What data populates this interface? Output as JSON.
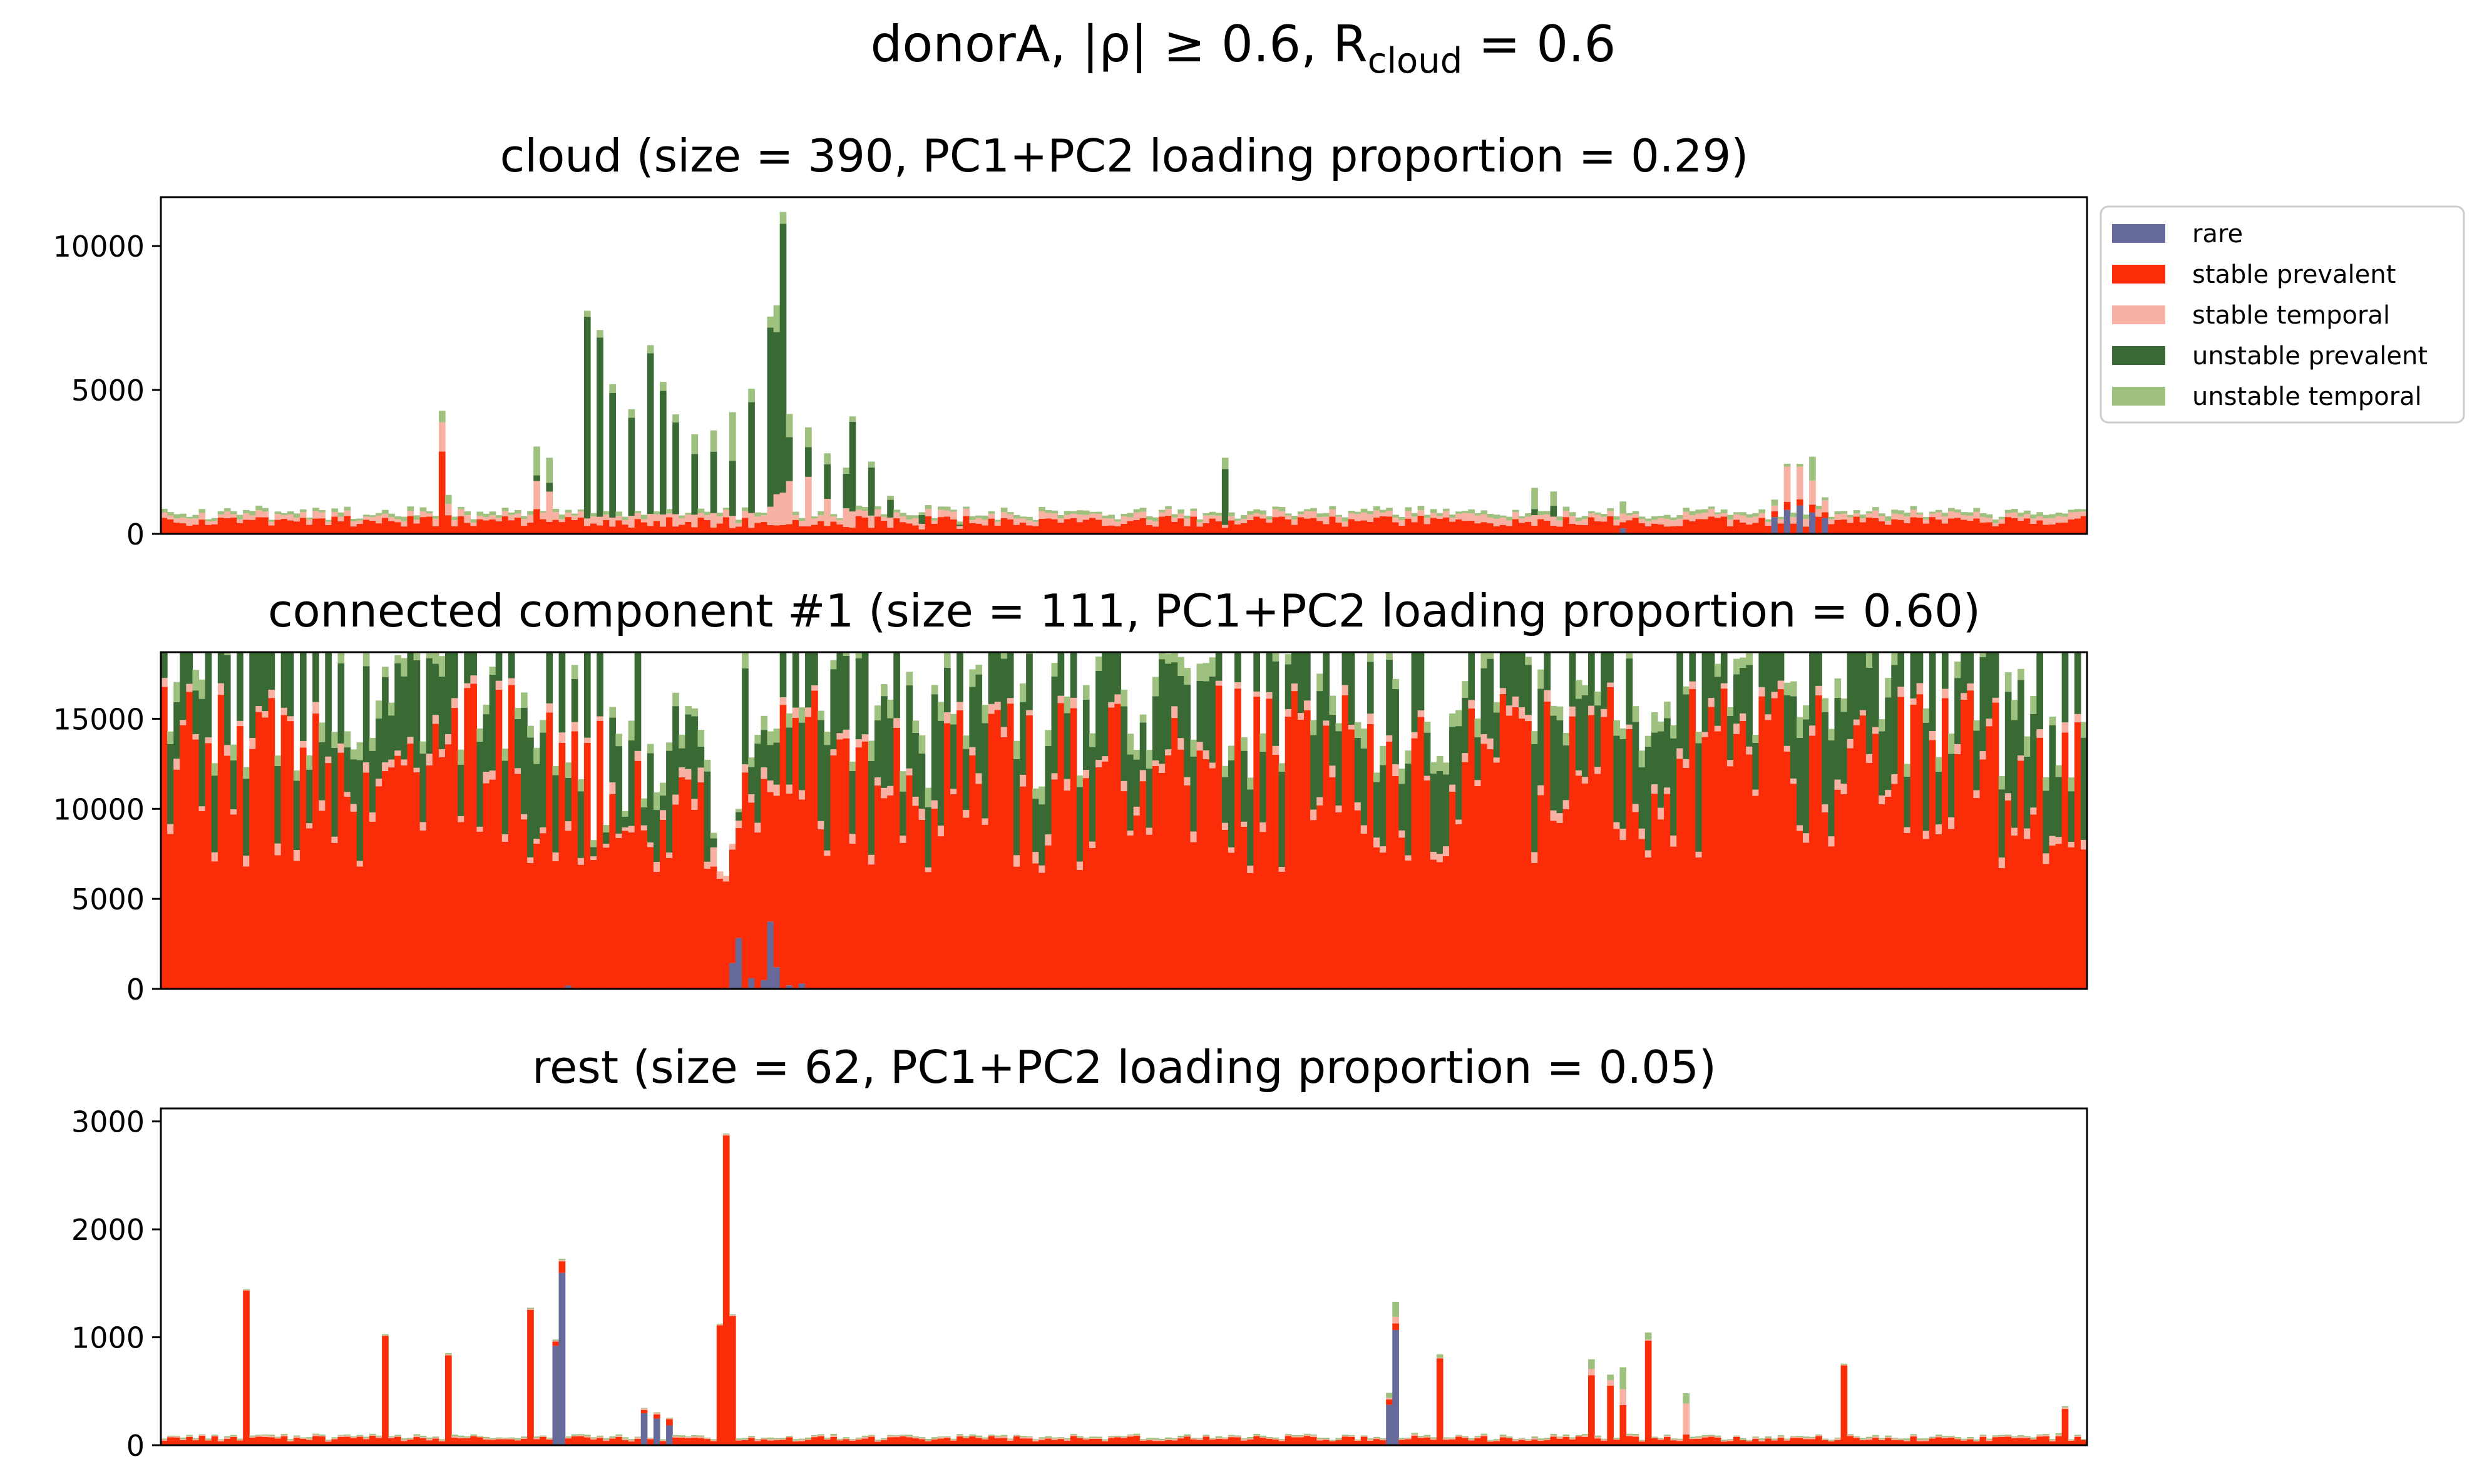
{
  "figure": {
    "suptitle_prefix": "donorA, |ρ| ≥ 0.6, R",
    "suptitle_sub": "cloud",
    "suptitle_suffix": " = 0.6"
  },
  "legend": {
    "placement": "upper-right outside first panel",
    "entries": [
      {
        "label": "rare",
        "color": "#666a9a"
      },
      {
        "label": "stable prevalent",
        "color": "#fa2d08"
      },
      {
        "label": "stable temporal",
        "color": "#f8b2a3"
      },
      {
        "label": "unstable prevalent",
        "color": "#3a6a34"
      },
      {
        "label": "unstable temporal",
        "color": "#9fc17f"
      }
    ]
  },
  "chart_data": [
    {
      "type": "area",
      "stacked": true,
      "title": "cloud (size = 390, PC1+PC2 loading proportion = 0.29)",
      "xlabel": "",
      "ylabel": "",
      "n_samples": 305,
      "ylim": [
        0,
        11700
      ],
      "yticks": [
        0,
        5000,
        10000
      ],
      "xticks": [],
      "series_order": [
        "rare",
        "stable prevalent",
        "stable temporal",
        "unstable prevalent",
        "unstable temporal"
      ],
      "baseline_totals": {
        "rare": 20,
        "stable prevalent": 420,
        "stable temporal": 190,
        "unstable prevalent": 0,
        "unstable temporal": 110
      },
      "events": [
        {
          "x": 44,
          "totals": {
            "stable prevalent": 3000,
            "stable temporal": 1000,
            "unstable temporal": 400
          }
        },
        {
          "x": 45,
          "totals": {
            "stable prevalent": 600,
            "stable temporal": 400,
            "unstable temporal": 300
          }
        },
        {
          "x": 59,
          "totals": {
            "stable prevalent": 800,
            "stable temporal": 1000,
            "unstable prevalent": 200,
            "unstable temporal": 1000
          }
        },
        {
          "x": 61,
          "totals": {
            "stable prevalent": 400,
            "stable temporal": 1000,
            "unstable prevalent": 300,
            "unstable temporal": 900
          }
        },
        {
          "x": 67,
          "totals": {
            "stable prevalent": 250,
            "stable temporal": 250,
            "unstable prevalent": 6800,
            "unstable temporal": 200
          }
        },
        {
          "x": 69,
          "totals": {
            "stable prevalent": 250,
            "stable temporal": 300,
            "unstable prevalent": 6000,
            "unstable temporal": 250
          }
        },
        {
          "x": 71,
          "totals": {
            "stable prevalent": 250,
            "stable temporal": 300,
            "unstable prevalent": 4500,
            "unstable temporal": 300
          }
        },
        {
          "x": 74,
          "totals": {
            "stable prevalent": 200,
            "stable temporal": 400,
            "unstable prevalent": 3500,
            "unstable temporal": 300
          }
        },
        {
          "x": 77,
          "totals": {
            "stable prevalent": 250,
            "stable temporal": 400,
            "unstable prevalent": 5400,
            "unstable temporal": 300
          }
        },
        {
          "x": 79,
          "totals": {
            "stable prevalent": 250,
            "stable temporal": 400,
            "unstable prevalent": 4000,
            "unstable temporal": 300
          }
        },
        {
          "x": 81,
          "totals": {
            "stable prevalent": 250,
            "stable temporal": 400,
            "unstable prevalent": 3000,
            "unstable temporal": 300
          }
        },
        {
          "x": 84,
          "totals": {
            "stable prevalent": 200,
            "stable temporal": 400,
            "unstable prevalent": 2200,
            "unstable temporal": 700
          }
        },
        {
          "x": 87,
          "totals": {
            "stable prevalent": 200,
            "stable temporal": 500,
            "unstable prevalent": 2200,
            "unstable temporal": 800
          }
        },
        {
          "x": 90,
          "totals": {
            "stable prevalent": 200,
            "stable temporal": 450,
            "unstable prevalent": 1900,
            "unstable temporal": 1600
          }
        },
        {
          "x": 93,
          "totals": {
            "stable prevalent": 200,
            "stable temporal": 500,
            "unstable prevalent": 3700,
            "unstable temporal": 500
          }
        },
        {
          "x": 96,
          "totals": {
            "stable prevalent": 300,
            "stable temporal": 600,
            "unstable prevalent": 6000,
            "unstable temporal": 400
          }
        },
        {
          "x": 97,
          "totals": {
            "stable prevalent": 300,
            "stable temporal": 1000,
            "unstable prevalent": 6000,
            "unstable temporal": 1000
          }
        },
        {
          "x": 98,
          "totals": {
            "stable prevalent": 300,
            "stable temporal": 1100,
            "unstable prevalent": 9300,
            "unstable temporal": 400
          }
        },
        {
          "x": 99,
          "totals": {
            "stable prevalent": 300,
            "stable temporal": 1400,
            "unstable prevalent": 1500,
            "unstable temporal": 800
          }
        },
        {
          "x": 102,
          "totals": {
            "stable prevalent": 250,
            "stable temporal": 1800,
            "unstable prevalent": 1000,
            "unstable temporal": 700
          }
        },
        {
          "x": 105,
          "totals": {
            "stable prevalent": 250,
            "stable temporal": 1000,
            "unstable prevalent": 1200,
            "unstable temporal": 400
          }
        },
        {
          "x": 108,
          "totals": {
            "stable prevalent": 200,
            "stable temporal": 700,
            "unstable prevalent": 1200,
            "unstable temporal": 200
          }
        },
        {
          "x": 109,
          "totals": {
            "stable prevalent": 200,
            "stable temporal": 600,
            "unstable prevalent": 2900,
            "unstable temporal": 200
          }
        },
        {
          "x": 112,
          "totals": {
            "stable prevalent": 200,
            "stable temporal": 400,
            "unstable prevalent": 1600,
            "unstable temporal": 200
          }
        },
        {
          "x": 115,
          "totals": {
            "stable prevalent": 200,
            "stable temporal": 350,
            "unstable prevalent": 600,
            "unstable temporal": 150
          }
        },
        {
          "x": 120,
          "totals": {
            "stable prevalent": 150,
            "stable temporal": 200,
            "unstable prevalent": 300,
            "unstable temporal": 100
          }
        },
        {
          "x": 126,
          "totals": {
            "stable prevalent": 150,
            "stable temporal": 100,
            "unstable prevalent": 50,
            "unstable temporal": 100
          }
        },
        {
          "x": 168,
          "totals": {
            "stable prevalent": 200,
            "stable temporal": 100,
            "unstable prevalent": 2000,
            "unstable temporal": 400
          }
        },
        {
          "x": 217,
          "totals": {
            "stable prevalent": 250,
            "stable temporal": 350,
            "unstable prevalent": 200,
            "unstable temporal": 700
          }
        },
        {
          "x": 220,
          "totals": {
            "stable prevalent": 250,
            "stable temporal": 300,
            "unstable prevalent": 400,
            "unstable temporal": 500
          }
        },
        {
          "x": 231,
          "totals": {
            "rare": 200,
            "stable prevalent": 200,
            "stable temporal": 300,
            "unstable temporal": 400
          }
        },
        {
          "x": 255,
          "totals": {
            "rare": 600,
            "stable prevalent": 200,
            "stable temporal": 200,
            "unstable temporal": 200
          }
        },
        {
          "x": 257,
          "totals": {
            "rare": 800,
            "stable prevalent": 300,
            "stable temporal": 1200,
            "unstable temporal": 100
          }
        },
        {
          "x": 259,
          "totals": {
            "rare": 1000,
            "stable prevalent": 200,
            "stable temporal": 1200,
            "unstable temporal": 100
          }
        },
        {
          "x": 261,
          "totals": {
            "rare": 700,
            "stable prevalent": 300,
            "stable temporal": 800,
            "unstable temporal": 800
          }
        },
        {
          "x": 263,
          "totals": {
            "rare": 600,
            "stable prevalent": 200,
            "stable temporal": 400,
            "unstable temporal": 100
          }
        }
      ]
    },
    {
      "type": "area",
      "stacked": true,
      "title": "connected component #1 (size = 111, PC1+PC2 loading proportion = 0.60)",
      "xlabel": "",
      "ylabel": "",
      "n_samples": 305,
      "ylim": [
        0,
        18700
      ],
      "yticks": [
        0,
        5000,
        10000,
        15000
      ],
      "xticks": [],
      "series_order": [
        "rare",
        "stable prevalent",
        "stable temporal",
        "unstable prevalent",
        "unstable temporal"
      ],
      "baseline_totals": {
        "rare": 0,
        "stable prevalent": 11700,
        "stable temporal": 450,
        "unstable prevalent": 4300,
        "unstable temporal": 800
      },
      "events": [
        {
          "x": 58,
          "totals": {
            "stable prevalent": 7000,
            "stable temporal": 300,
            "unstable prevalent": 7000,
            "unstable temporal": 700
          }
        },
        {
          "x": 60,
          "totals": {
            "stable prevalent": 9000,
            "stable temporal": 300,
            "unstable prevalent": 5000,
            "unstable temporal": 700
          }
        },
        {
          "x": 64,
          "totals": {
            "rare": 200,
            "stable prevalent": 9000,
            "stable temporal": 500,
            "unstable prevalent": 2500,
            "unstable temporal": 800
          }
        },
        {
          "x": 66,
          "totals": {
            "stable prevalent": 6500,
            "stable temporal": 400,
            "unstable prevalent": 4000,
            "unstable temporal": 700
          }
        },
        {
          "x": 68,
          "totals": {
            "stable prevalent": 6800,
            "stable temporal": 200,
            "unstable prevalent": 500,
            "unstable temporal": 400
          }
        },
        {
          "x": 70,
          "totals": {
            "stable prevalent": 8000,
            "stable temporal": 200,
            "unstable prevalent": 600,
            "unstable temporal": 400
          }
        },
        {
          "x": 73,
          "totals": {
            "stable prevalent": 8500,
            "stable temporal": 200,
            "unstable prevalent": 600,
            "unstable temporal": 300
          }
        },
        {
          "x": 76,
          "totals": {
            "stable prevalent": 9000,
            "stable temporal": 300,
            "unstable prevalent": 1000,
            "unstable temporal": 500
          }
        },
        {
          "x": 79,
          "totals": {
            "stable prevalent": 10000,
            "stable temporal": 500,
            "unstable prevalent": 800,
            "unstable temporal": 700
          }
        },
        {
          "x": 82,
          "totals": {
            "stable prevalent": 11000,
            "stable temporal": 600,
            "unstable prevalent": 1000,
            "unstable temporal": 800
          }
        },
        {
          "x": 85,
          "totals": {
            "stable prevalent": 12000,
            "stable temporal": 800,
            "unstable prevalent": 1200,
            "unstable temporal": 900
          }
        },
        {
          "x": 87,
          "totals": {
            "stable prevalent": 7000,
            "stable temporal": 1000,
            "unstable prevalent": 500,
            "unstable temporal": 300
          }
        },
        {
          "x": 88,
          "totals": {
            "stable prevalent": 6200,
            "stable temporal": 400,
            "unstable prevalent": 0,
            "unstable temporal": 0
          }
        },
        {
          "x": 89,
          "totals": {
            "stable prevalent": 5900,
            "stable temporal": 300,
            "unstable prevalent": 0,
            "unstable temporal": 0
          }
        },
        {
          "x": 90,
          "totals": {
            "rare": 1500,
            "stable prevalent": 6200,
            "stable temporal": 300,
            "unstable prevalent": 0,
            "unstable temporal": 0
          }
        },
        {
          "x": 91,
          "totals": {
            "rare": 3000,
            "stable prevalent": 6000,
            "stable temporal": 400,
            "unstable prevalent": 500,
            "unstable temporal": 200
          }
        },
        {
          "x": 93,
          "totals": {
            "rare": 600,
            "stable prevalent": 10000,
            "stable temporal": 500,
            "unstable prevalent": 1500,
            "unstable temporal": 500
          }
        },
        {
          "x": 95,
          "totals": {
            "rare": 500,
            "stable prevalent": 10500,
            "stable temporal": 600,
            "unstable prevalent": 2000,
            "unstable temporal": 800
          }
        },
        {
          "x": 96,
          "totals": {
            "rare": 3900,
            "stable prevalent": 7000,
            "stable temporal": 600,
            "unstable prevalent": 2000,
            "unstable temporal": 800
          }
        },
        {
          "x": 97,
          "totals": {
            "rare": 1200,
            "stable prevalent": 10000,
            "stable temporal": 600,
            "unstable prevalent": 2500,
            "unstable temporal": 800
          }
        },
        {
          "x": 99,
          "totals": {
            "rare": 200,
            "stable prevalent": 11000,
            "stable temporal": 500,
            "unstable prevalent": 3000,
            "unstable temporal": 800
          }
        },
        {
          "x": 101,
          "totals": {
            "rare": 300,
            "stable prevalent": 11000,
            "stable temporal": 500,
            "unstable prevalent": 3500,
            "unstable temporal": 800
          }
        },
        {
          "x": 169,
          "totals": {
            "stable prevalent": 8000,
            "stable temporal": 300,
            "unstable prevalent": 5000,
            "unstable temporal": 800
          }
        },
        {
          "x": 260,
          "totals": {
            "stable prevalent": 8500,
            "stable temporal": 500,
            "unstable prevalent": 6000,
            "unstable temporal": 800
          }
        },
        {
          "x": 302,
          "totals": {
            "stable prevalent": 8000,
            "stable temporal": 300,
            "unstable prevalent": 3000,
            "unstable temporal": 800
          }
        }
      ]
    },
    {
      "type": "area",
      "stacked": true,
      "title": "rest (size = 62, PC1+PC2 loading proportion = 0.05)",
      "xlabel": "",
      "ylabel": "",
      "n_samples": 305,
      "ylim": [
        0,
        3120
      ],
      "yticks": [
        0,
        1000,
        2000,
        3000
      ],
      "xticks": [],
      "series_order": [
        "rare",
        "stable prevalent",
        "stable temporal",
        "unstable prevalent",
        "unstable temporal"
      ],
      "baseline_totals": {
        "rare": 0,
        "stable prevalent": 60,
        "stable temporal": 10,
        "unstable prevalent": 0,
        "unstable temporal": 10
      },
      "events": [
        {
          "x": 13,
          "totals": {
            "stable prevalent": 1450
          }
        },
        {
          "x": 35,
          "totals": {
            "stable prevalent": 1050
          }
        },
        {
          "x": 45,
          "totals": {
            "stable prevalent": 830
          }
        },
        {
          "x": 58,
          "totals": {
            "stable prevalent": 1230
          }
        },
        {
          "x": 62,
          "totals": {
            "rare": 940,
            "stable prevalent": 40
          }
        },
        {
          "x": 63,
          "totals": {
            "rare": 1530,
            "stable prevalent": 100
          }
        },
        {
          "x": 76,
          "totals": {
            "rare": 300,
            "stable prevalent": 30
          }
        },
        {
          "x": 78,
          "totals": {
            "rare": 230,
            "stable prevalent": 40
          }
        },
        {
          "x": 80,
          "totals": {
            "rare": 180,
            "stable prevalent": 60
          }
        },
        {
          "x": 88,
          "totals": {
            "stable prevalent": 1100
          }
        },
        {
          "x": 89,
          "totals": {
            "stable prevalent": 2970
          }
        },
        {
          "x": 90,
          "totals": {
            "stable prevalent": 1120
          }
        },
        {
          "x": 194,
          "totals": {
            "rare": 350,
            "stable prevalent": 50,
            "unstable temporal": 50
          }
        },
        {
          "x": 195,
          "totals": {
            "rare": 1000,
            "stable prevalent": 60,
            "stable temporal": 60,
            "unstable temporal": 130
          }
        },
        {
          "x": 202,
          "totals": {
            "stable prevalent": 820,
            "unstable temporal": 30
          }
        },
        {
          "x": 226,
          "totals": {
            "stable prevalent": 620,
            "stable temporal": 60,
            "unstable temporal": 90
          }
        },
        {
          "x": 229,
          "totals": {
            "stable prevalent": 600,
            "stable temporal": 50,
            "unstable temporal": 50
          }
        },
        {
          "x": 231,
          "totals": {
            "stable prevalent": 380,
            "stable temporal": 150,
            "unstable temporal": 200
          }
        },
        {
          "x": 235,
          "totals": {
            "stable prevalent": 1030,
            "unstable temporal": 70
          }
        },
        {
          "x": 241,
          "totals": {
            "stable prevalent": 100,
            "stable temporal": 300,
            "unstable temporal": 100
          }
        },
        {
          "x": 266,
          "totals": {
            "stable prevalent": 780
          }
        },
        {
          "x": 301,
          "totals": {
            "stable prevalent": 360
          }
        }
      ]
    }
  ]
}
